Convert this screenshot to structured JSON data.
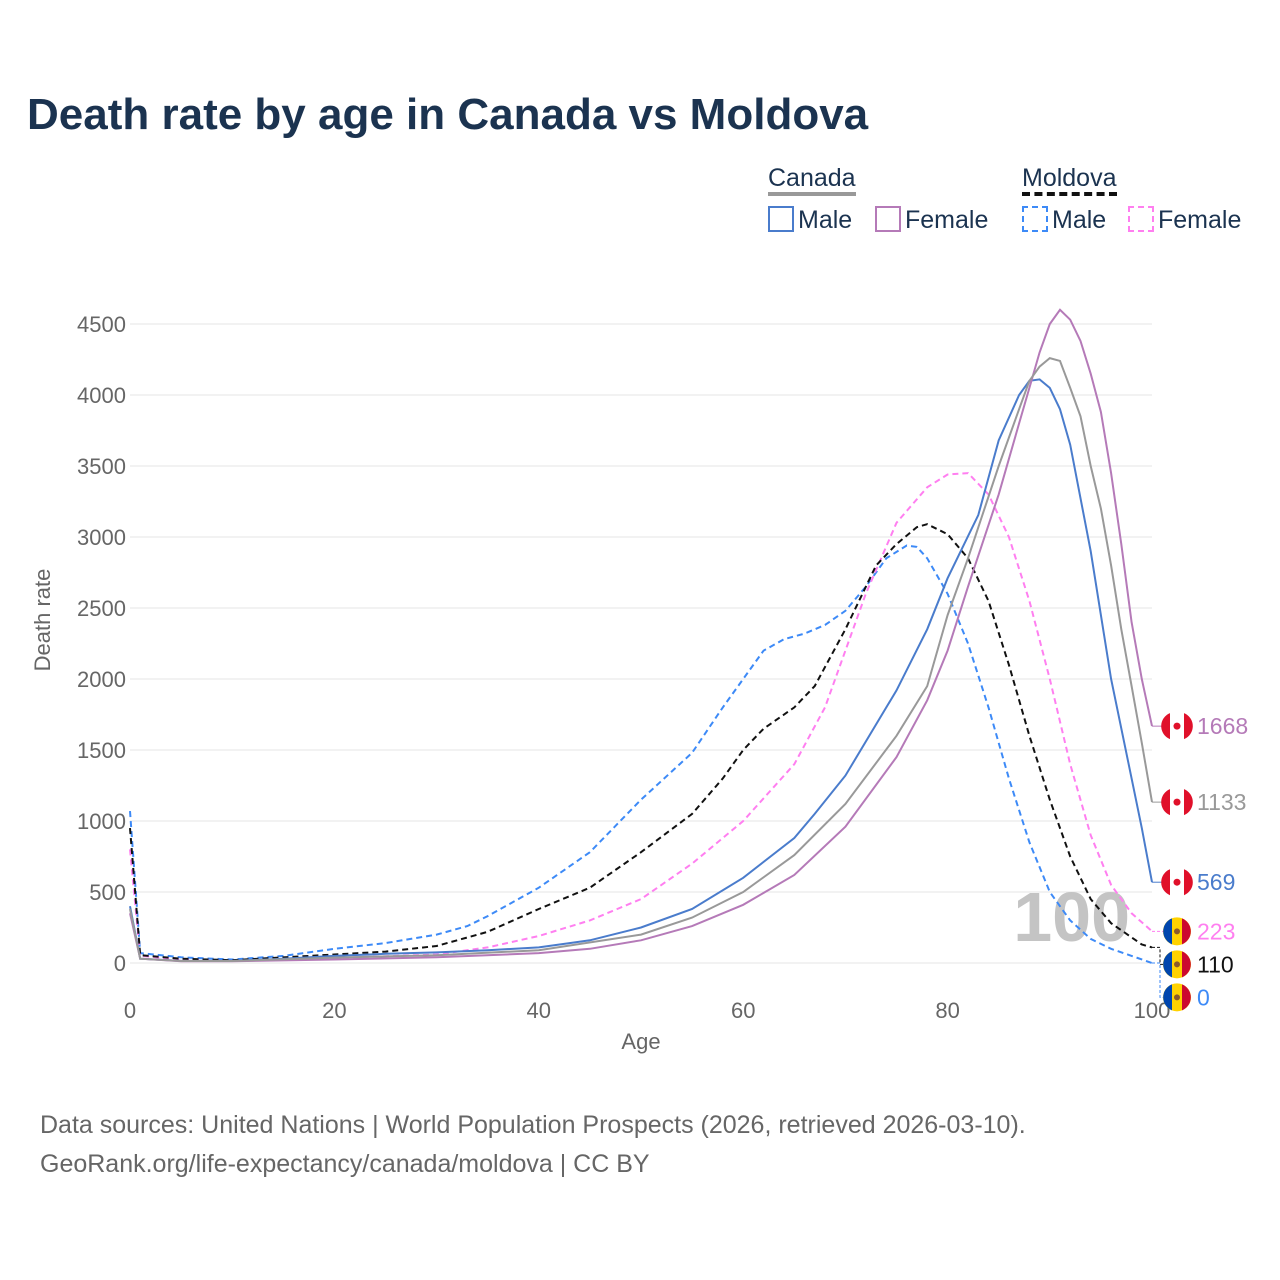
{
  "title": "Death rate by age in Canada vs Moldova",
  "legend": {
    "canada": "Canada",
    "moldova": "Moldova",
    "male": "Male",
    "female": "Female"
  },
  "source_line1": "Data sources: United Nations | World Population Prospects (2026, retrieved 2026-03-10).",
  "source_line2": "GeoRank.org/life-expectancy/canada/moldova | CC BY",
  "chart_data": {
    "type": "line",
    "title": "Death rate by age in Canada vs Moldova",
    "xlabel": "Age",
    "ylabel": "Death rate",
    "xlim": [
      0,
      100
    ],
    "ylim": [
      0,
      4500
    ],
    "xticks": [
      0,
      20,
      40,
      60,
      80,
      100
    ],
    "yticks": [
      0,
      500,
      1000,
      1500,
      2000,
      2500,
      3000,
      3500,
      4000,
      4500
    ],
    "current_age": "100",
    "series": [
      {
        "name": "Moldova Male",
        "country": "Moldova",
        "color": "#3d8af7",
        "dash": true,
        "end_label": "0",
        "points": [
          [
            0,
            1070
          ],
          [
            1,
            70
          ],
          [
            5,
            40
          ],
          [
            10,
            25
          ],
          [
            15,
            50
          ],
          [
            20,
            100
          ],
          [
            25,
            140
          ],
          [
            30,
            200
          ],
          [
            33,
            260
          ],
          [
            35,
            330
          ],
          [
            40,
            530
          ],
          [
            45,
            780
          ],
          [
            50,
            1150
          ],
          [
            55,
            1480
          ],
          [
            58,
            1800
          ],
          [
            60,
            2000
          ],
          [
            62,
            2200
          ],
          [
            64,
            2280
          ],
          [
            66,
            2320
          ],
          [
            68,
            2380
          ],
          [
            70,
            2480
          ],
          [
            72,
            2650
          ],
          [
            74,
            2850
          ],
          [
            76,
            2940
          ],
          [
            77,
            2930
          ],
          [
            78,
            2850
          ],
          [
            80,
            2600
          ],
          [
            82,
            2250
          ],
          [
            84,
            1800
          ],
          [
            86,
            1300
          ],
          [
            88,
            850
          ],
          [
            90,
            500
          ],
          [
            92,
            300
          ],
          [
            94,
            170
          ],
          [
            96,
            100
          ],
          [
            98,
            50
          ],
          [
            100,
            0
          ]
        ]
      },
      {
        "name": "Moldova Female",
        "country": "Moldova",
        "color": "#ff7ff0",
        "dash": true,
        "end_label": "223",
        "points": [
          [
            0,
            800
          ],
          [
            1,
            50
          ],
          [
            5,
            25
          ],
          [
            10,
            15
          ],
          [
            20,
            35
          ],
          [
            30,
            60
          ],
          [
            35,
            110
          ],
          [
            40,
            190
          ],
          [
            45,
            300
          ],
          [
            50,
            450
          ],
          [
            55,
            700
          ],
          [
            60,
            1000
          ],
          [
            65,
            1400
          ],
          [
            68,
            1800
          ],
          [
            70,
            2200
          ],
          [
            72,
            2600
          ],
          [
            75,
            3100
          ],
          [
            78,
            3350
          ],
          [
            80,
            3440
          ],
          [
            82,
            3450
          ],
          [
            84,
            3300
          ],
          [
            86,
            3000
          ],
          [
            88,
            2550
          ],
          [
            90,
            2000
          ],
          [
            92,
            1400
          ],
          [
            94,
            900
          ],
          [
            96,
            550
          ],
          [
            98,
            350
          ],
          [
            100,
            223
          ]
        ]
      },
      {
        "name": "Moldova Total",
        "country": "Moldova",
        "color": "#111111",
        "dash": true,
        "end_label": "110",
        "points": [
          [
            0,
            950
          ],
          [
            1,
            55
          ],
          [
            5,
            30
          ],
          [
            10,
            20
          ],
          [
            20,
            60
          ],
          [
            25,
            80
          ],
          [
            30,
            120
          ],
          [
            35,
            220
          ],
          [
            40,
            380
          ],
          [
            45,
            530
          ],
          [
            50,
            780
          ],
          [
            55,
            1050
          ],
          [
            58,
            1300
          ],
          [
            60,
            1500
          ],
          [
            62,
            1650
          ],
          [
            65,
            1800
          ],
          [
            67,
            1950
          ],
          [
            70,
            2350
          ],
          [
            73,
            2800
          ],
          [
            75,
            2950
          ],
          [
            77,
            3070
          ],
          [
            78,
            3090
          ],
          [
            80,
            3020
          ],
          [
            82,
            2850
          ],
          [
            84,
            2550
          ],
          [
            86,
            2100
          ],
          [
            88,
            1600
          ],
          [
            90,
            1150
          ],
          [
            92,
            750
          ],
          [
            94,
            450
          ],
          [
            96,
            280
          ],
          [
            98,
            180
          ],
          [
            99,
            130
          ],
          [
            100,
            110
          ]
        ]
      },
      {
        "name": "Canada Male",
        "country": "Canada",
        "color": "#4a7ccc",
        "dash": false,
        "end_label": "569",
        "points": [
          [
            0,
            400
          ],
          [
            1,
            30
          ],
          [
            5,
            15
          ],
          [
            10,
            15
          ],
          [
            15,
            30
          ],
          [
            20,
            50
          ],
          [
            25,
            65
          ],
          [
            30,
            75
          ],
          [
            35,
            90
          ],
          [
            40,
            110
          ],
          [
            43,
            140
          ],
          [
            45,
            160
          ],
          [
            50,
            250
          ],
          [
            55,
            380
          ],
          [
            60,
            600
          ],
          [
            65,
            880
          ],
          [
            67,
            1050
          ],
          [
            70,
            1320
          ],
          [
            75,
            1920
          ],
          [
            78,
            2350
          ],
          [
            80,
            2710
          ],
          [
            83,
            3155
          ],
          [
            85,
            3680
          ],
          [
            87,
            4000
          ],
          [
            88,
            4100
          ],
          [
            89,
            4110
          ],
          [
            90,
            4050
          ],
          [
            91,
            3900
          ],
          [
            92,
            3650
          ],
          [
            94,
            2900
          ],
          [
            96,
            2000
          ],
          [
            98,
            1300
          ],
          [
            99,
            950
          ],
          [
            100,
            569
          ]
        ]
      },
      {
        "name": "Canada Female",
        "country": "Canada",
        "color": "#b57ab8",
        "dash": false,
        "end_label": "1668",
        "points": [
          [
            0,
            350
          ],
          [
            1,
            30
          ],
          [
            5,
            12
          ],
          [
            10,
            12
          ],
          [
            20,
            25
          ],
          [
            30,
            40
          ],
          [
            40,
            70
          ],
          [
            45,
            100
          ],
          [
            50,
            160
          ],
          [
            55,
            260
          ],
          [
            60,
            410
          ],
          [
            65,
            620
          ],
          [
            70,
            960
          ],
          [
            75,
            1450
          ],
          [
            78,
            1850
          ],
          [
            80,
            2200
          ],
          [
            82,
            2650
          ],
          [
            85,
            3300
          ],
          [
            87,
            3800
          ],
          [
            88,
            4050
          ],
          [
            89,
            4300
          ],
          [
            90,
            4500
          ],
          [
            91,
            4600
          ],
          [
            92,
            4530
          ],
          [
            93,
            4380
          ],
          [
            94,
            4150
          ],
          [
            95,
            3880
          ],
          [
            96,
            3450
          ],
          [
            97,
            2950
          ],
          [
            98,
            2400
          ],
          [
            99,
            2000
          ],
          [
            100,
            1668
          ]
        ]
      },
      {
        "name": "Canada Total",
        "country": "Canada",
        "color": "#999999",
        "dash": false,
        "end_label": "1133",
        "points": [
          [
            0,
            380
          ],
          [
            1,
            30
          ],
          [
            5,
            14
          ],
          [
            10,
            14
          ],
          [
            20,
            38
          ],
          [
            30,
            55
          ],
          [
            40,
            90
          ],
          [
            50,
            200
          ],
          [
            55,
            320
          ],
          [
            60,
            500
          ],
          [
            65,
            760
          ],
          [
            70,
            1120
          ],
          [
            75,
            1600
          ],
          [
            78,
            1950
          ],
          [
            80,
            2450
          ],
          [
            82,
            2850
          ],
          [
            85,
            3500
          ],
          [
            87,
            3900
          ],
          [
            88,
            4100
          ],
          [
            89,
            4200
          ],
          [
            90,
            4260
          ],
          [
            91,
            4240
          ],
          [
            92,
            4050
          ],
          [
            93,
            3850
          ],
          [
            94,
            3500
          ],
          [
            95,
            3200
          ],
          [
            96,
            2800
          ],
          [
            97,
            2350
          ],
          [
            98,
            1950
          ],
          [
            99,
            1550
          ],
          [
            100,
            1133
          ]
        ]
      }
    ]
  }
}
